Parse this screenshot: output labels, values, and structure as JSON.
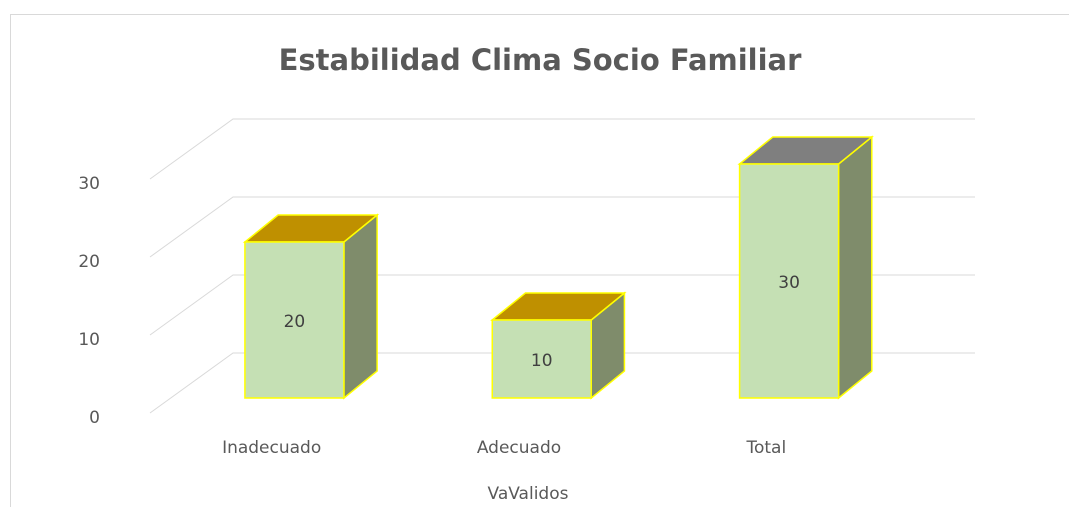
{
  "chart_data": {
    "type": "bar3d",
    "title": "Estabilidad Clima Socio Familiar",
    "x_label": "VaValidos",
    "categories": [
      "Inadecuado",
      "Adecuado",
      "Total"
    ],
    "values": [
      20,
      10,
      30
    ],
    "color": "#c5e0b4",
    "side_color": "#7f8c6b",
    "edge_color": "#ffff00",
    "top_colors": [
      "#bf9000",
      "#bf9000",
      "#7f7f7f"
    ],
    "ylim": [
      0,
      30
    ],
    "yticks": [
      0,
      10,
      20,
      30
    ],
    "grid": true
  }
}
